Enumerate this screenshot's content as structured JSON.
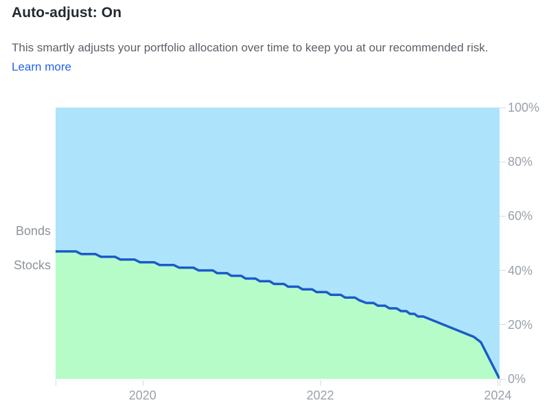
{
  "header": {
    "title": "Auto-adjust: On",
    "description": "This smartly adjusts your portfolio allocation over time to keep you at our recommended risk.",
    "link_label": "Learn more"
  },
  "colors": {
    "title_text": "#232a31",
    "body_text": "#5a6169",
    "link": "#2363e8",
    "axis_text": "#9aa1a8",
    "side_label_text": "#8d9399",
    "tick": "#d7dbdf",
    "bonds_fill": "#ade4fb",
    "stocks_fill": "#b6fcc9",
    "line": "#1a5bcb"
  },
  "chart_data": {
    "type": "area",
    "title": "",
    "xlabel": "",
    "ylabel": "",
    "stacked": true,
    "grid": false,
    "x_domain": [
      2019.02,
      2024.02
    ],
    "y_domain": [
      0,
      100
    ],
    "x_ticks": [
      {
        "value": 2020,
        "label": "2020"
      },
      {
        "value": 2022,
        "label": "2022"
      },
      {
        "value": 2024,
        "label": "2024"
      }
    ],
    "edge_tick_years": [
      2019.02,
      2024.02
    ],
    "y_ticks": [
      {
        "value": 0,
        "label": "0%"
      },
      {
        "value": 20,
        "label": "20%"
      },
      {
        "value": 40,
        "label": "40%"
      },
      {
        "value": 60,
        "label": "60%"
      },
      {
        "value": 80,
        "label": "80%"
      },
      {
        "value": 100,
        "label": "100%"
      }
    ],
    "side_labels": [
      {
        "label": "Bonds",
        "y_value": 54.5
      },
      {
        "label": "Stocks",
        "y_value": 41.9
      }
    ],
    "series": [
      {
        "name": "Bonds",
        "role": "remainder-above",
        "note": "bonds_pct = 100 - stocks_pct, fills area above stocks line to 100%"
      },
      {
        "name": "Stocks",
        "role": "lower-area",
        "points": [
          [
            2019.02,
            47
          ],
          [
            2019.25,
            47
          ],
          [
            2019.31,
            46
          ],
          [
            2019.47,
            46
          ],
          [
            2019.53,
            45
          ],
          [
            2019.69,
            45
          ],
          [
            2019.75,
            44
          ],
          [
            2019.91,
            44
          ],
          [
            2019.97,
            43
          ],
          [
            2020.13,
            43
          ],
          [
            2020.19,
            42
          ],
          [
            2020.35,
            42
          ],
          [
            2020.41,
            41
          ],
          [
            2020.57,
            41
          ],
          [
            2020.63,
            40
          ],
          [
            2020.79,
            40
          ],
          [
            2020.84,
            39
          ],
          [
            2020.95,
            39
          ],
          [
            2021.0,
            38
          ],
          [
            2021.11,
            38
          ],
          [
            2021.16,
            37
          ],
          [
            2021.27,
            37
          ],
          [
            2021.32,
            36
          ],
          [
            2021.43,
            36
          ],
          [
            2021.48,
            35
          ],
          [
            2021.59,
            35
          ],
          [
            2021.64,
            34
          ],
          [
            2021.75,
            34
          ],
          [
            2021.8,
            33
          ],
          [
            2021.91,
            33
          ],
          [
            2021.96,
            32
          ],
          [
            2022.07,
            32
          ],
          [
            2022.12,
            31
          ],
          [
            2022.23,
            31
          ],
          [
            2022.28,
            30
          ],
          [
            2022.39,
            30
          ],
          [
            2022.44,
            29
          ],
          [
            2022.52,
            28
          ],
          [
            2022.6,
            28
          ],
          [
            2022.65,
            27
          ],
          [
            2022.73,
            27
          ],
          [
            2022.78,
            26
          ],
          [
            2022.86,
            26
          ],
          [
            2022.91,
            25
          ],
          [
            2022.97,
            25
          ],
          [
            2023.01,
            24
          ],
          [
            2023.06,
            24
          ],
          [
            2023.1,
            23
          ],
          [
            2023.16,
            23
          ],
          [
            2023.73,
            15.5
          ],
          [
            2023.81,
            13.5
          ],
          [
            2024.02,
            0
          ]
        ]
      }
    ]
  }
}
